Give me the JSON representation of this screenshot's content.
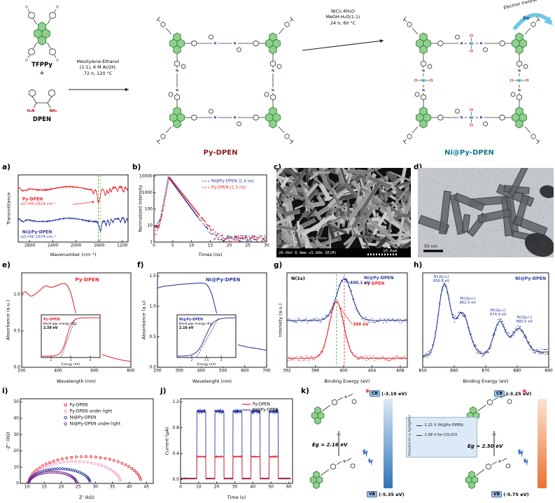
{
  "scheme": {
    "tfppy_label": "TFPPy",
    "plus": "+",
    "dpen_label": "DPEN",
    "arrow1_lines": [
      "Mesitylene:Ethanol",
      "(1:1), 6 M AcOH,",
      "72 h, 120 °C"
    ],
    "arrow2_lines": [
      "NiCl₂.6H₂O",
      "MeOH:H₂O(1:1)",
      "24 h, 60 °C"
    ],
    "product1_label": "Py-DPEN",
    "product2_label": "Ni@Py-DPEN",
    "electron_transfer_label": "Electron transfer",
    "hv_label": "hν",
    "atoms": {
      "N": "N",
      "Ni": "Ni",
      "Cl": "Cl",
      "O": "O",
      "H2N": "H₂N",
      "NH2": "NH₂"
    }
  },
  "panel_labels": {
    "a": "a)",
    "b": "b)",
    "c": "c)",
    "d": "d)",
    "e": "e)",
    "f": "f)",
    "g": "g)",
    "h": "h)",
    "i": "i)",
    "j": "j)",
    "k": "k)"
  },
  "sem": {
    "footer": "20.0kV 8.9mm x5.00k SE(M)",
    "scale": "10.0µm"
  },
  "tem": {
    "scale": "50 nm"
  },
  "band_diagram": {
    "cb_left": "CB",
    "cb_left_value": "(-3.19 eV)",
    "vb_left": "VB",
    "vb_left_value": "(-5.35 eV)",
    "cb_right": "CB",
    "cb_right_value": "(-3.25 eV)",
    "vb_right": "VB",
    "vb_right_value": "(-5.75 eV)",
    "eg_left": "Eg = 2.16 eV",
    "eg_right": "Eg = 2.50 eV",
    "box_line1": "-1.21 V (Ni@Py-DPEN)",
    "box_line2": "-1.06 V for CO₂/CO",
    "axis_label": "Potential (V vs Ag/AgNO₃)",
    "asterisk": "*"
  },
  "chart_data": [
    {
      "id": "ftir",
      "panel": "a",
      "type": "line",
      "xlabel": "Wavenumber (cm⁻¹)",
      "ylabel": "Transmittance",
      "x_range": [
        3000,
        1100
      ],
      "x_ticks": [
        2800,
        2400,
        2000,
        1600,
        1200
      ],
      "series": [
        {
          "name": "Py-DPEN",
          "color": "#e8262a",
          "annotation": "ν(C=N) 1614 cm⁻¹",
          "cn_peak": 1614,
          "baseline": 0.8,
          "dips": [
            [
              2925,
              0.05,
              35
            ],
            [
              2855,
              0.03,
              25
            ],
            [
              1699,
              0.05,
              12
            ],
            [
              1614,
              0.2,
              16
            ],
            [
              1585,
              0.08,
              10
            ],
            [
              1490,
              0.09,
              14
            ],
            [
              1440,
              0.08,
              12
            ],
            [
              1390,
              0.06,
              10
            ],
            [
              1280,
              0.07,
              12
            ],
            [
              1180,
              0.08,
              14
            ],
            [
              1120,
              0.05,
              10
            ]
          ]
        },
        {
          "name": "Ni@Py-DPEN",
          "color": "#2b3a9e",
          "annotation": "ν(C=N) 1574 cm⁻¹",
          "cn_peak": 1574,
          "baseline": 0.33,
          "dips": [
            [
              2920,
              0.04,
              35
            ],
            [
              1605,
              0.06,
              14
            ],
            [
              1574,
              0.14,
              14
            ],
            [
              1480,
              0.07,
              12
            ],
            [
              1420,
              0.07,
              12
            ],
            [
              1360,
              0.05,
              10
            ],
            [
              1230,
              0.06,
              12
            ],
            [
              1150,
              0.06,
              12
            ],
            [
              1100,
              0.05,
              10
            ]
          ]
        }
      ],
      "guides": [
        {
          "x": 1614,
          "color": "#2e9e46"
        },
        {
          "x": 1574,
          "color": "#a6ce39"
        }
      ]
    },
    {
      "id": "decay",
      "panel": "b",
      "type": "scatter",
      "xlabel": "Times (ns)",
      "ylabel": "Normalized Intensity",
      "x_range": [
        0,
        30
      ],
      "x_ticks": [
        0,
        5,
        10,
        15,
        20,
        25,
        30
      ],
      "y_ticks": [
        1,
        10,
        100,
        1000,
        10000
      ],
      "y_log": true,
      "series": [
        {
          "name": "Ni@Py-DPEN (1.4 ns)",
          "color": "#2b3a9e",
          "tau": 1.4,
          "peak": 9000,
          "t0": 3.8
        },
        {
          "name": "Py-DPEN (1.5 ns)",
          "color": "#e8262a",
          "tau": 1.5,
          "peak": 9000,
          "t0": 4.0
        }
      ]
    },
    {
      "id": "uvvis_py",
      "panel": "e",
      "type": "line",
      "title": "Py-DPEN",
      "title_color": "#e8262a",
      "color": "#e8262a",
      "xlabel": "Wavelength (nm)",
      "ylabel": "Absorbance (a.u.)",
      "x_range": [
        200,
        800
      ],
      "x_ticks": [
        200,
        400,
        600,
        800
      ],
      "y_range": [
        0,
        1.3
      ],
      "y_ticks": [
        0,
        0.5,
        1
      ],
      "points": [
        [
          200,
          1.0
        ],
        [
          215,
          1.04
        ],
        [
          230,
          1.02
        ],
        [
          250,
          0.98
        ],
        [
          270,
          1.0
        ],
        [
          300,
          1.06
        ],
        [
          330,
          1.12
        ],
        [
          360,
          1.1
        ],
        [
          390,
          1.12
        ],
        [
          420,
          1.15
        ],
        [
          445,
          1.14
        ],
        [
          470,
          1.02
        ],
        [
          500,
          0.72
        ],
        [
          530,
          0.45
        ],
        [
          560,
          0.3
        ],
        [
          600,
          0.22
        ],
        [
          650,
          0.17
        ],
        [
          700,
          0.13
        ],
        [
          750,
          0.1
        ],
        [
          800,
          0.08
        ]
      ]
    },
    {
      "id": "tauc_py",
      "panel": "e-inset",
      "type": "tauc",
      "label": "Py-DPEN",
      "label2": "Band gap energy (Eg)",
      "value": "2.50 eV",
      "xlabel": "Energy (eV)",
      "x_range": [
        1.5,
        4.5
      ],
      "x_ticks": [
        2,
        3,
        4
      ],
      "eg": 2.5,
      "color": "#e8262a"
    },
    {
      "id": "uvvis_ni",
      "panel": "f",
      "type": "line",
      "title": "Ni@Py-DPEN",
      "title_color": "#2b3a9e",
      "color": "#2b3a9e",
      "xlabel": "Wavelenght (nm)",
      "ylabel": "Absorbance (a.u)",
      "x_range": [
        200,
        700
      ],
      "x_ticks": [
        200,
        300,
        400,
        500,
        600,
        700
      ],
      "y_range": [
        0,
        1.55
      ],
      "y_ticks": [
        0,
        0.5,
        1,
        1.5
      ],
      "points": [
        [
          200,
          1.3
        ],
        [
          230,
          1.33
        ],
        [
          260,
          1.34
        ],
        [
          300,
          1.36
        ],
        [
          340,
          1.37
        ],
        [
          380,
          1.38
        ],
        [
          410,
          1.38
        ],
        [
          430,
          1.34
        ],
        [
          450,
          1.18
        ],
        [
          470,
          0.9
        ],
        [
          490,
          0.62
        ],
        [
          510,
          0.47
        ],
        [
          530,
          0.42
        ],
        [
          560,
          0.38
        ],
        [
          600,
          0.34
        ],
        [
          650,
          0.31
        ],
        [
          700,
          0.28
        ]
      ]
    },
    {
      "id": "tauc_ni",
      "panel": "f-inset",
      "type": "tauc",
      "label": "Ni@Py-DPEN",
      "label2": "Band gap energy (Eg)",
      "value": "2.16 eV",
      "xlabel": "Energy (eV)",
      "x_range": [
        1.5,
        3.5
      ],
      "x_ticks": [
        2,
        2.5,
        3
      ],
      "eg": 2.16,
      "color": "#2b3a9e"
    },
    {
      "id": "xps_n1s",
      "panel": "g",
      "type": "xps",
      "annotation_top": "N(1s)",
      "xlabel": "Binding Energy (eV)",
      "ylabel": "Intensity (a.u.)",
      "x_range": [
        392,
        409
      ],
      "x_ticks": [
        392,
        396,
        400,
        404,
        408
      ],
      "series": [
        {
          "name": "Ni@Py-DPEN",
          "color": "#2b3a9e",
          "peak": 400.1,
          "amp": 0.55,
          "width": 1.1,
          "offset": 0.62,
          "peak_label": "400.1 eV"
        },
        {
          "name": "Py-DPEN",
          "color": "#e8262a",
          "peak": 399,
          "amp": 0.75,
          "width": 1,
          "offset": 0.12,
          "peak_label": "399 eV"
        }
      ],
      "guides": [
        {
          "x": 399,
          "color": "#2e9e46"
        },
        {
          "x": 400.1,
          "color": "#e8262a"
        }
      ]
    },
    {
      "id": "xps_ni2p",
      "panel": "h",
      "type": "xps_fit",
      "title": "Ni@Py-DPEN",
      "title_color": "#2b3a9e",
      "xlabel": "Binding Energy (eV)",
      "x_range": [
        850,
        890
      ],
      "x_ticks": [
        850,
        860,
        870,
        880,
        890
      ],
      "peaks": [
        {
          "label": "Ni(2p₃/₂)",
          "value": "856.8 eV",
          "center": 856.8,
          "amp": 1.0,
          "width": 1.8
        },
        {
          "label": "Ni(2p₃/₂)",
          "value": "862.5 eV",
          "center": 862.5,
          "amp": 0.6,
          "width": 2.2
        },
        {
          "label": "Ni(2p₁/₂)",
          "value": "874.4 eV",
          "center": 874.4,
          "amp": 0.45,
          "width": 1.8
        },
        {
          "label": "Ni(2p₁/₂)",
          "value": "880.5 eV",
          "center": 880.5,
          "amp": 0.35,
          "width": 2.2
        }
      ]
    },
    {
      "id": "eis",
      "panel": "i",
      "type": "nyquist",
      "xlabel": "Z' (kΩ)",
      "ylabel": "-Z'' (kΩ)",
      "x_range": [
        8,
        47
      ],
      "x_ticks": [
        10,
        15,
        20,
        25,
        30,
        35,
        40,
        45
      ],
      "y_range": [
        0,
        52
      ],
      "y_ticks": [
        0,
        10,
        20,
        30,
        40,
        50
      ],
      "series": [
        {
          "name": "Py-DPEN",
          "color": "#e8262a",
          "x0": 10.5,
          "diameter": 33
        },
        {
          "name": "Py-DPEN under light",
          "color": "#f29bc1",
          "x0": 10.5,
          "diameter": 27
        },
        {
          "name": "Ni@Py-DPEN",
          "color": "#2b3a9e",
          "x0": 10.5,
          "diameter": 18
        },
        {
          "name": "Ni@Py-DPEN under light",
          "color": "#7b2d8e",
          "x0": 10.5,
          "diameter": 14
        }
      ]
    },
    {
      "id": "photocurrent",
      "panel": "j",
      "type": "squarewave",
      "xlabel": "Time (s)",
      "ylabel": "Current (µA)",
      "x_range": [
        0,
        62
      ],
      "x_ticks": [
        0,
        10,
        20,
        30,
        40,
        50,
        60
      ],
      "y_range": [
        -0.06,
        1.25
      ],
      "y_ticks": [
        0,
        0.4,
        0.8,
        1.2
      ],
      "on_intervals": [
        [
          9,
          14
        ],
        [
          19,
          24
        ],
        [
          29,
          34
        ],
        [
          39,
          44
        ],
        [
          49,
          54
        ]
      ],
      "series": [
        {
          "name": "Py-DPEN",
          "color": "#e8262a",
          "amp": 0.35,
          "base": 0.01
        },
        {
          "name": "Ni@Py-DPEN",
          "color": "#2b3a9e",
          "amp": 1.05,
          "base": 0.02
        }
      ]
    }
  ]
}
